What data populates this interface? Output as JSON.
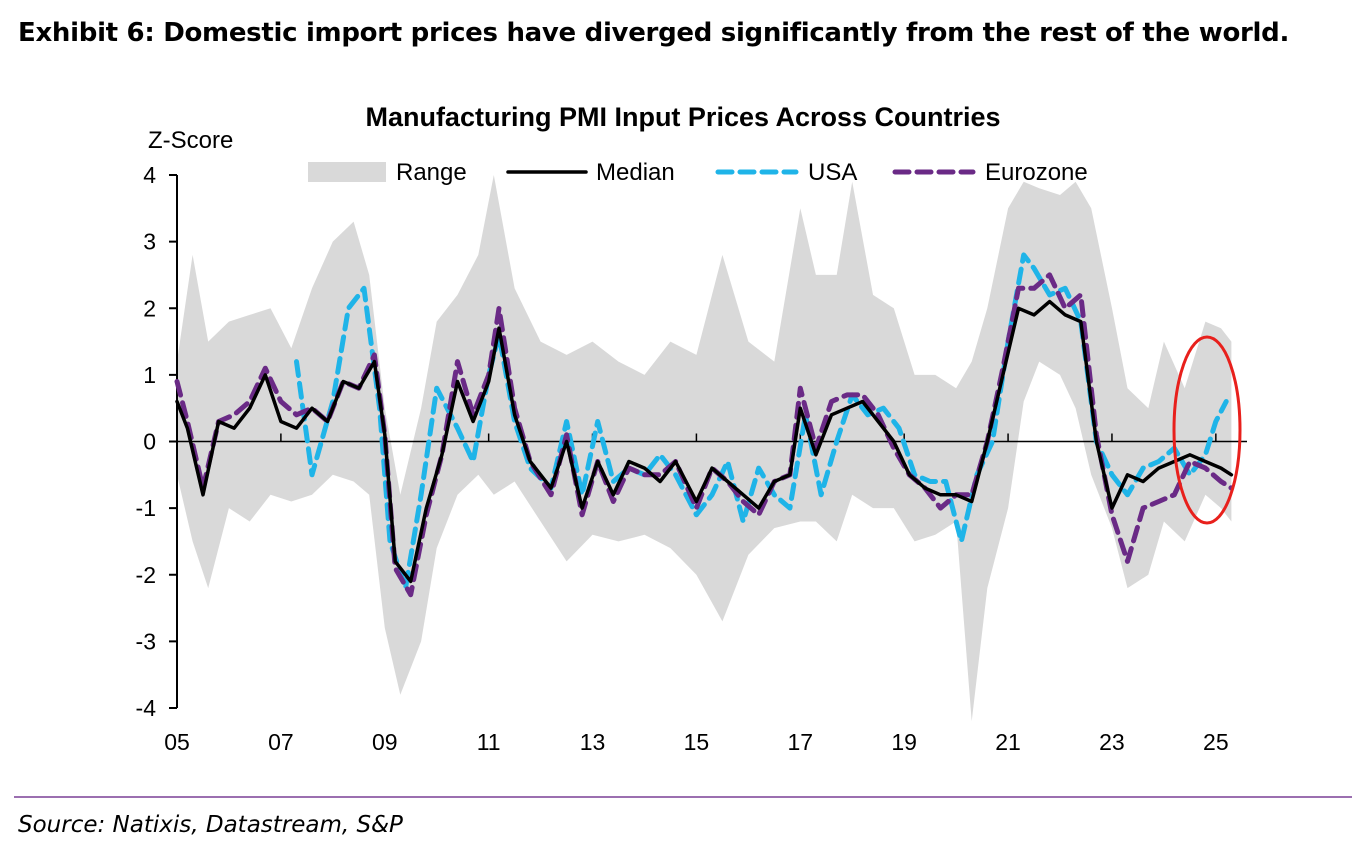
{
  "exhibit_title": "Exhibit 6: Domestic import prices have diverged significantly from the rest of the world.",
  "source": "Source: Natixis, Datastream, S&P",
  "colors": {
    "range": "#d9d9d9",
    "median": "#000000",
    "usa": "#1fb4e8",
    "eurozone": "#6a2a86",
    "highlight": "#e8201c",
    "divider": "#9b6fb0"
  },
  "chart_data": {
    "type": "line",
    "title": "Manufacturing PMI Input Prices Across Countries",
    "ylabel": "Z-Score",
    "ylim": [
      -4,
      4
    ],
    "yticks": [
      4,
      3,
      2,
      1,
      0,
      -1,
      -2,
      -3,
      -4
    ],
    "xlim": [
      2005.0,
      2025.6
    ],
    "xticks": [
      2005,
      2007,
      2009,
      2011,
      2013,
      2015,
      2017,
      2019,
      2021,
      2023,
      2025
    ],
    "xtick_labels": [
      "05",
      "07",
      "09",
      "11",
      "13",
      "15",
      "17",
      "19",
      "21",
      "23",
      "25"
    ],
    "legend": [
      "Range",
      "Median",
      "USA",
      "Eurozone"
    ],
    "legend_position": "top",
    "range_band": {
      "name": "Range",
      "x": [
        2005.0,
        2005.3,
        2005.6,
        2006.0,
        2006.4,
        2006.8,
        2007.2,
        2007.6,
        2008.0,
        2008.4,
        2008.7,
        2009.0,
        2009.3,
        2009.7,
        2010.0,
        2010.4,
        2010.8,
        2011.1,
        2011.5,
        2012.0,
        2012.5,
        2013.0,
        2013.5,
        2014.0,
        2014.5,
        2015.0,
        2015.5,
        2016.0,
        2016.5,
        2017.0,
        2017.3,
        2017.7,
        2018.0,
        2018.4,
        2018.8,
        2019.2,
        2019.6,
        2020.0,
        2020.3,
        2020.6,
        2021.0,
        2021.3,
        2021.6,
        2022.0,
        2022.3,
        2022.6,
        2023.0,
        2023.3,
        2023.7,
        2024.0,
        2024.4,
        2024.8,
        2025.1,
        2025.3
      ],
      "upper": [
        1.2,
        2.8,
        1.5,
        1.8,
        1.9,
        2.0,
        1.4,
        2.3,
        3.0,
        3.3,
        2.5,
        0.5,
        -0.8,
        0.5,
        1.8,
        2.2,
        2.8,
        4.0,
        2.3,
        1.5,
        1.3,
        1.5,
        1.2,
        1.0,
        1.5,
        1.3,
        2.8,
        1.5,
        1.2,
        3.5,
        2.5,
        2.5,
        3.9,
        2.2,
        2.0,
        1.0,
        1.0,
        0.8,
        1.2,
        2.0,
        3.5,
        3.9,
        3.8,
        3.7,
        3.9,
        3.5,
        2.0,
        0.8,
        0.5,
        1.5,
        0.8,
        1.8,
        1.7,
        1.5
      ],
      "lower": [
        -0.5,
        -1.5,
        -2.2,
        -1.0,
        -1.2,
        -0.8,
        -0.9,
        -0.8,
        -0.5,
        -0.6,
        -0.8,
        -2.8,
        -3.8,
        -3.0,
        -1.6,
        -0.8,
        -0.5,
        -0.8,
        -0.6,
        -1.2,
        -1.8,
        -1.4,
        -1.5,
        -1.4,
        -1.6,
        -2.0,
        -2.7,
        -1.7,
        -1.3,
        -1.2,
        -1.2,
        -1.5,
        -0.8,
        -1.0,
        -1.0,
        -1.5,
        -1.4,
        -1.2,
        -4.2,
        -2.2,
        -1.0,
        0.6,
        1.2,
        1.0,
        0.5,
        -0.5,
        -1.3,
        -2.2,
        -2.0,
        -1.2,
        -1.5,
        -0.8,
        -1.0,
        -1.2
      ]
    },
    "series": [
      {
        "name": "Median",
        "x": [
          2005.0,
          2005.2,
          2005.5,
          2005.8,
          2006.1,
          2006.4,
          2006.7,
          2007.0,
          2007.3,
          2007.6,
          2007.9,
          2008.2,
          2008.5,
          2008.8,
          2009.0,
          2009.2,
          2009.5,
          2009.8,
          2010.1,
          2010.4,
          2010.7,
          2011.0,
          2011.2,
          2011.5,
          2011.8,
          2012.2,
          2012.5,
          2012.8,
          2013.1,
          2013.4,
          2013.7,
          2014.0,
          2014.3,
          2014.6,
          2015.0,
          2015.3,
          2015.6,
          2015.9,
          2016.2,
          2016.5,
          2016.8,
          2017.0,
          2017.3,
          2017.6,
          2017.9,
          2018.2,
          2018.5,
          2018.8,
          2019.1,
          2019.4,
          2019.7,
          2020.0,
          2020.3,
          2020.6,
          2020.9,
          2021.2,
          2021.5,
          2021.8,
          2022.1,
          2022.4,
          2022.7,
          2023.0,
          2023.3,
          2023.6,
          2023.9,
          2024.2,
          2024.5,
          2024.8,
          2025.1,
          2025.3
        ],
        "values": [
          0.6,
          0.2,
          -0.8,
          0.3,
          0.2,
          0.5,
          1.0,
          0.3,
          0.2,
          0.5,
          0.3,
          0.9,
          0.8,
          1.2,
          0.1,
          -1.8,
          -2.1,
          -1.0,
          -0.2,
          0.9,
          0.3,
          0.9,
          1.7,
          0.4,
          -0.3,
          -0.7,
          0.0,
          -1.0,
          -0.3,
          -0.8,
          -0.3,
          -0.4,
          -0.6,
          -0.3,
          -0.9,
          -0.4,
          -0.6,
          -0.8,
          -1.0,
          -0.6,
          -0.5,
          0.5,
          -0.2,
          0.4,
          0.5,
          0.6,
          0.3,
          0.0,
          -0.5,
          -0.7,
          -0.8,
          -0.8,
          -0.9,
          0.0,
          1.0,
          2.0,
          1.9,
          2.1,
          1.9,
          1.8,
          0.0,
          -1.0,
          -0.5,
          -0.6,
          -0.4,
          -0.3,
          -0.2,
          -0.3,
          -0.4,
          -0.5
        ]
      },
      {
        "name": "USA",
        "x": [
          2007.3,
          2007.6,
          2008.0,
          2008.3,
          2008.6,
          2008.9,
          2009.1,
          2009.4,
          2009.7,
          2010.0,
          2010.4,
          2010.7,
          2011.0,
          2011.2,
          2011.5,
          2011.8,
          2012.2,
          2012.5,
          2012.8,
          2013.1,
          2013.4,
          2013.7,
          2014.0,
          2014.3,
          2014.6,
          2015.0,
          2015.3,
          2015.6,
          2015.9,
          2016.2,
          2016.5,
          2016.8,
          2017.1,
          2017.4,
          2017.7,
          2018.0,
          2018.3,
          2018.6,
          2018.9,
          2019.2,
          2019.5,
          2019.8,
          2020.1,
          2020.4,
          2020.7,
          2021.0,
          2021.3,
          2021.5,
          2021.8,
          2022.1,
          2022.4,
          2022.7,
          2023.0,
          2023.3,
          2023.6,
          2023.9,
          2024.2,
          2024.5,
          2024.8,
          2025.0,
          2025.2
        ],
        "values": [
          1.2,
          -0.5,
          0.6,
          2.0,
          2.3,
          0.5,
          -1.5,
          -2.2,
          -0.8,
          0.8,
          0.2,
          -0.3,
          1.0,
          1.6,
          0.3,
          -0.4,
          -0.7,
          0.3,
          -0.8,
          0.3,
          -0.6,
          -0.4,
          -0.5,
          -0.2,
          -0.5,
          -1.1,
          -0.8,
          -0.3,
          -1.2,
          -0.4,
          -0.8,
          -1.0,
          0.4,
          -0.8,
          0.0,
          0.7,
          0.4,
          0.5,
          0.2,
          -0.5,
          -0.6,
          -0.6,
          -1.5,
          -0.5,
          0.0,
          1.5,
          2.8,
          2.6,
          2.2,
          2.3,
          1.8,
          0.0,
          -0.5,
          -0.8,
          -0.4,
          -0.3,
          -0.1,
          -0.5,
          -0.2,
          0.3,
          0.6
        ]
      },
      {
        "name": "Eurozone",
        "x": [
          2005.0,
          2005.2,
          2005.5,
          2005.8,
          2006.1,
          2006.4,
          2006.7,
          2007.0,
          2007.3,
          2007.6,
          2007.9,
          2008.2,
          2008.5,
          2008.8,
          2009.0,
          2009.2,
          2009.5,
          2009.8,
          2010.1,
          2010.4,
          2010.7,
          2011.0,
          2011.2,
          2011.5,
          2011.8,
          2012.2,
          2012.5,
          2012.8,
          2013.1,
          2013.4,
          2013.7,
          2014.0,
          2014.3,
          2014.6,
          2015.0,
          2015.3,
          2015.6,
          2015.9,
          2016.2,
          2016.5,
          2016.8,
          2017.0,
          2017.3,
          2017.6,
          2017.9,
          2018.2,
          2018.5,
          2018.8,
          2019.1,
          2019.4,
          2019.7,
          2020.0,
          2020.3,
          2020.6,
          2020.9,
          2021.2,
          2021.5,
          2021.8,
          2022.1,
          2022.4,
          2022.7,
          2023.0,
          2023.3,
          2023.6,
          2023.9,
          2024.2,
          2024.5,
          2024.8,
          2025.1,
          2025.3
        ],
        "values": [
          0.9,
          0.3,
          -0.7,
          0.3,
          0.4,
          0.6,
          1.1,
          0.6,
          0.4,
          0.5,
          0.3,
          0.9,
          0.8,
          1.3,
          0.1,
          -1.9,
          -2.3,
          -1.1,
          -0.2,
          1.2,
          0.4,
          1.0,
          2.0,
          0.5,
          -0.3,
          -0.8,
          0.1,
          -1.1,
          -0.3,
          -0.9,
          -0.4,
          -0.5,
          -0.5,
          -0.3,
          -1.0,
          -0.4,
          -0.6,
          -0.9,
          -1.1,
          -0.6,
          -0.5,
          0.8,
          -0.1,
          0.6,
          0.7,
          0.7,
          0.4,
          -0.1,
          -0.5,
          -0.7,
          -1.0,
          -0.8,
          -0.8,
          0.0,
          1.1,
          2.3,
          2.3,
          2.5,
          2.0,
          2.2,
          0.1,
          -1.1,
          -1.8,
          -1.0,
          -0.9,
          -0.8,
          -0.3,
          -0.4,
          -0.6,
          -0.7
        ]
      }
    ]
  }
}
